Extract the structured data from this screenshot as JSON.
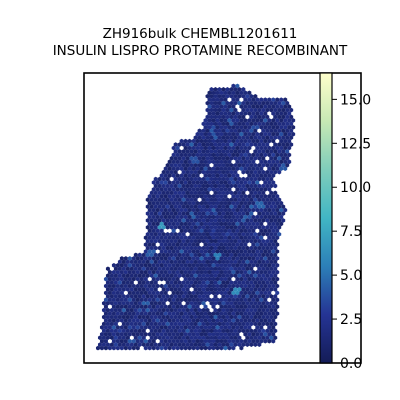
{
  "chart_data": {
    "type": "heatmap",
    "subtype": "hexbin spatial map",
    "title_line1": "ZH916bulk CHEMBL1201611",
    "title_line2": "INSULIN LISPRO PROTAMINE RECOMBINANT",
    "xlabel": "",
    "ylabel": "",
    "axis_ticks_visible": false,
    "grid": false,
    "colormap": "YlGnBu_r",
    "colorbar": {
      "placement": "right",
      "range": [
        0,
        16.5
      ],
      "ticks": [
        0.0,
        2.5,
        5.0,
        7.5,
        10.0,
        12.5,
        15.0
      ],
      "tick_labels": [
        "0.0",
        "2.5",
        "5.0",
        "7.5",
        "10.0",
        "12.5",
        "15.0"
      ],
      "colors": [
        "#141c57",
        "#253494",
        "#2c7fb8",
        "#41b6c4",
        "#7fcdbb",
        "#c7e9b4",
        "#ffffcc"
      ]
    },
    "typical_value": 1.5,
    "hotspots": [
      {
        "x": 0.55,
        "y": 0.75,
        "value": 6.2
      },
      {
        "x": 0.28,
        "y": 0.53,
        "value": 6.8
      },
      {
        "x": 0.48,
        "y": 0.63,
        "value": 5.5
      },
      {
        "x": 0.8,
        "y": 0.8,
        "value": 5.0
      },
      {
        "x": 0.86,
        "y": 0.55,
        "value": 4.6
      },
      {
        "x": 0.24,
        "y": 0.62,
        "value": 4.2
      },
      {
        "x": 0.64,
        "y": 0.45,
        "value": 4.5
      },
      {
        "x": 1.01,
        "y": 0.57,
        "value": 7.2
      },
      {
        "x": 0.72,
        "y": 0.33,
        "value": 4.0
      },
      {
        "x": 0.4,
        "y": 0.3,
        "value": 3.8
      }
    ]
  }
}
